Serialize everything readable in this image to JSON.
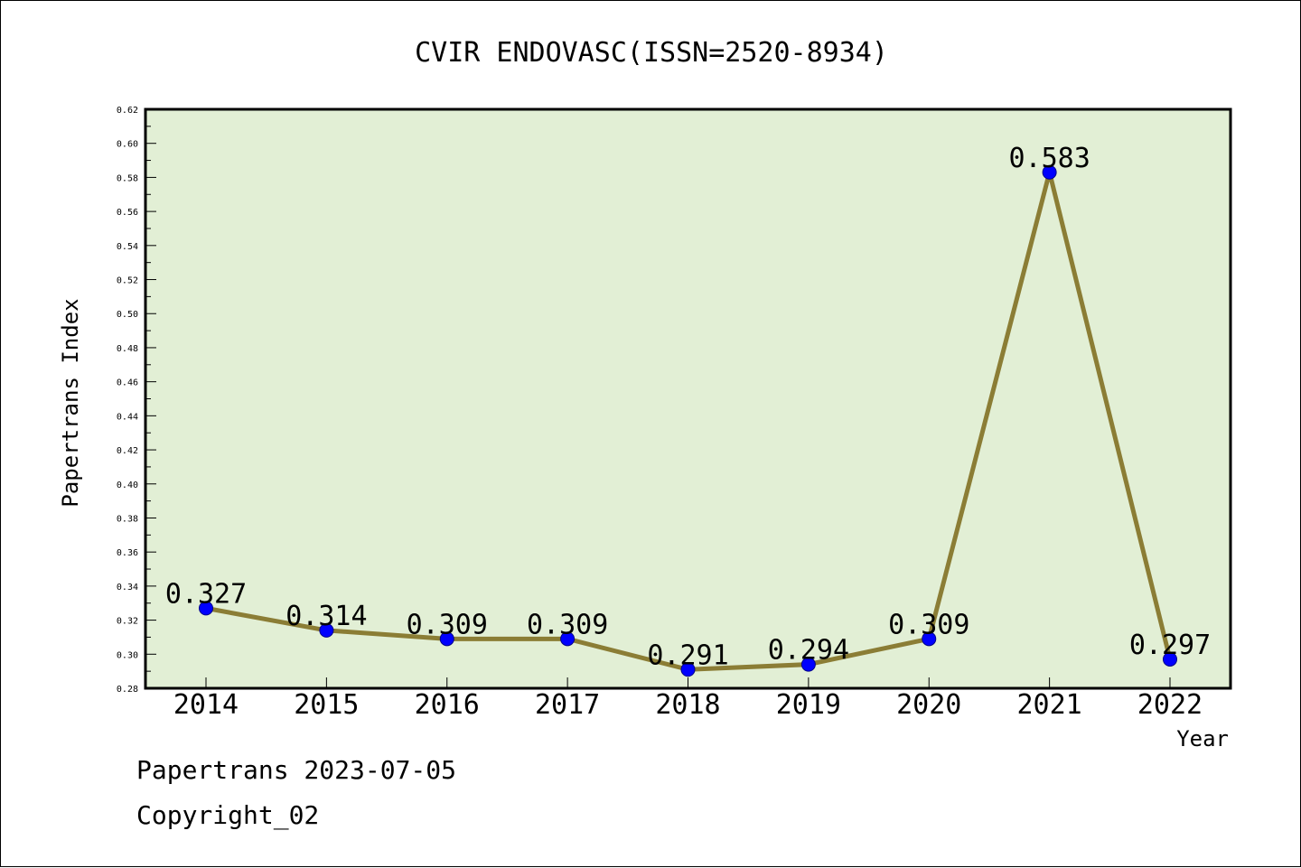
{
  "chart_data": {
    "type": "line",
    "title": "CVIR ENDOVASC(ISSN=2520-8934)",
    "xlabel": "Year",
    "ylabel": "Papertrans Index",
    "categories": [
      "2014",
      "2015",
      "2016",
      "2017",
      "2018",
      "2019",
      "2020",
      "2021",
      "2022"
    ],
    "values": [
      0.327,
      0.314,
      0.309,
      0.309,
      0.291,
      0.294,
      0.309,
      0.583,
      0.297
    ],
    "data_labels": [
      "0.327",
      "0.314",
      "0.309",
      "0.309",
      "0.291",
      "0.294",
      "0.309",
      "0.583",
      "0.297"
    ],
    "ylim": [
      0.28,
      0.62
    ],
    "yticks": [
      "0.28",
      "0.30",
      "0.32",
      "0.34",
      "0.36",
      "0.38",
      "0.40",
      "0.42",
      "0.44",
      "0.46",
      "0.48",
      "0.50",
      "0.52",
      "0.54",
      "0.56",
      "0.58",
      "0.60",
      "0.62"
    ],
    "grid": false,
    "legend": "none",
    "colors": {
      "plot_background": "#e2efd5",
      "line": "#8b7d35",
      "marker": "#0000ff"
    }
  },
  "footer": {
    "line1": "Papertrans 2023-07-05",
    "line2": "Copyright_02"
  }
}
